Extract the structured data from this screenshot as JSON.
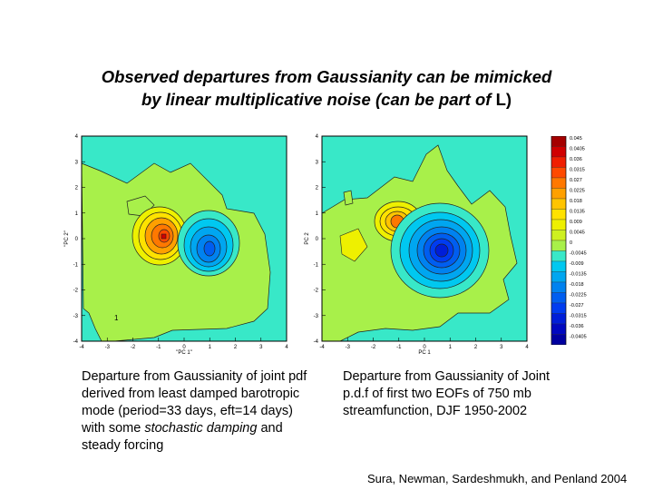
{
  "title": {
    "line1": "Observed departures from Gaussianity can be mimicked",
    "line2_italic": "by linear multiplicative noise (can be part of ",
    "line2_upright": "L)"
  },
  "left_panel": {
    "xlabel": "\"PC 1\"",
    "ylabel": "\"PC 2\"",
    "xticks": [
      "-4",
      "-3",
      "-2",
      "-1",
      "0",
      "1",
      "2",
      "3",
      "4"
    ],
    "yticks": [
      "4",
      "3",
      "2",
      "1",
      "0",
      "-1",
      "-2",
      "-3",
      "-4"
    ],
    "annotation": "1"
  },
  "right_panel": {
    "xlabel": "PC 1",
    "ylabel": "PC 2",
    "xticks": [
      "-4",
      "-3",
      "-2",
      "-1",
      "0",
      "1",
      "2",
      "3",
      "4"
    ],
    "yticks": [
      "4",
      "3",
      "2",
      "1",
      "0",
      "-1",
      "-2",
      "-3",
      "-4"
    ]
  },
  "colorbar": {
    "labels": [
      "0.045",
      "0.0405",
      "0.036",
      "0.0315",
      "0.027",
      "0.0225",
      "0.018",
      "0.0135",
      "0.009",
      "0.0045",
      "0",
      "-0.0045",
      "-0.009",
      "-0.0135",
      "-0.018",
      "-0.0225",
      "-0.027",
      "-0.0315",
      "-0.036",
      "-0.0405"
    ],
    "colors": [
      "#a50000",
      "#d00000",
      "#f01e00",
      "#ff4a00",
      "#ff7800",
      "#ffa000",
      "#ffc400",
      "#ffe200",
      "#eef000",
      "#cef020",
      "#a8f04a",
      "#38e8c8",
      "#00c8f0",
      "#00a6f0",
      "#0082f0",
      "#005ef0",
      "#003cf0",
      "#001ed8",
      "#0008c0",
      "#0000a0"
    ]
  },
  "captions": {
    "left_part1": "Departure from Gaussianity of joint pdf derived from least damped barotropic mode (period=33 days, eft=14 days) with some ",
    "left_italic": "stochastic damping",
    "left_part2": " and steady forcing",
    "right": "Departure from Gaussianity of Joint p.d.f of first two EOFs of 750 mb streamfunction, DJF 1950-2002"
  },
  "credit": "Sura, Newman, Sardeshmukh, and Penland 2004"
}
